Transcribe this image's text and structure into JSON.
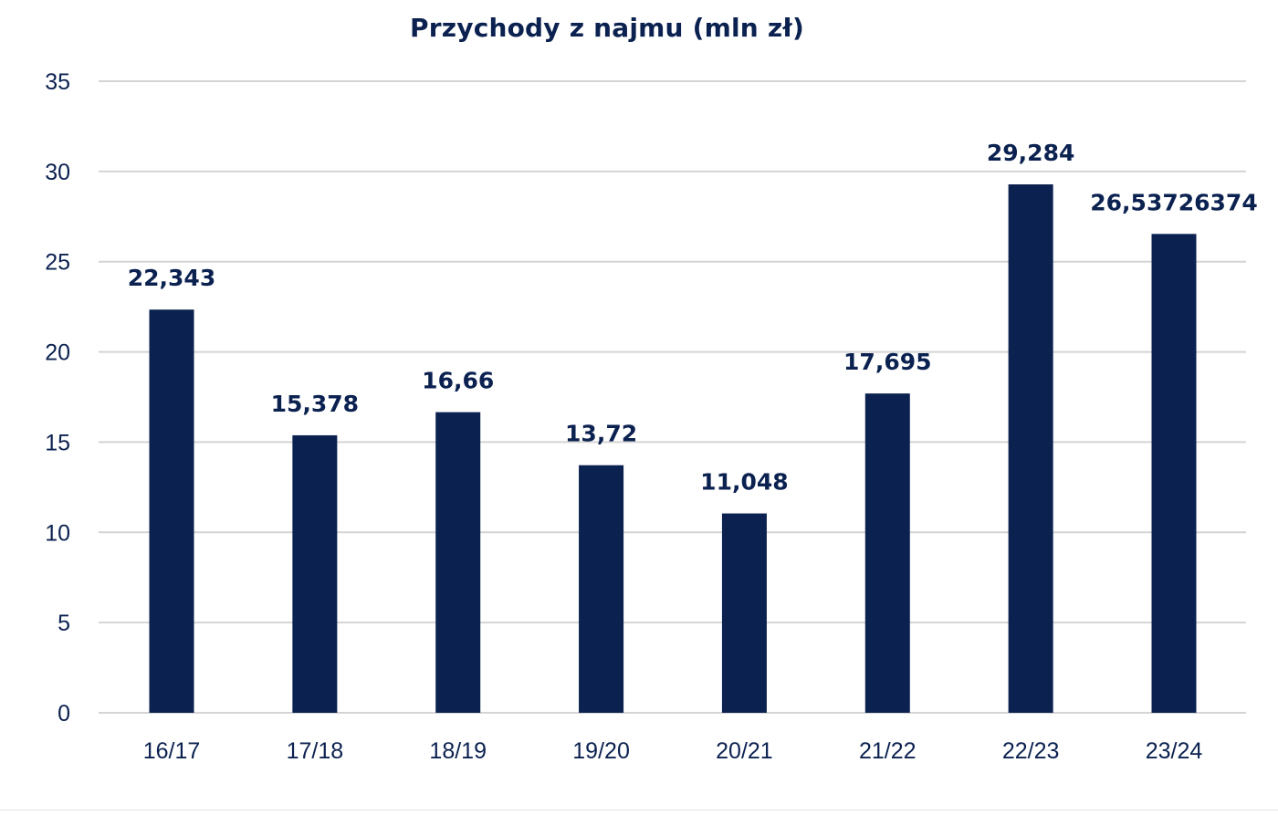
{
  "chart_data": {
    "type": "bar",
    "title": "Przychody z najmu (mln zł)",
    "xlabel": "",
    "ylabel": "",
    "categories": [
      "16/17",
      "17/18",
      "18/19",
      "19/20",
      "20/21",
      "21/22",
      "22/23",
      "23/24"
    ],
    "values": [
      22.343,
      15.378,
      16.66,
      13.72,
      11.048,
      17.695,
      29.284,
      26.53726374
    ],
    "data_labels": [
      "22,343",
      "15,378",
      "16,66",
      "13,72",
      "11,048",
      "17,695",
      "29,284",
      "26,53726374"
    ],
    "ylim": [
      0,
      35
    ],
    "yticks": [
      "0",
      "5",
      "10",
      "15",
      "20",
      "25",
      "30",
      "35"
    ],
    "grid": true,
    "legend": "none",
    "bar_color": "#0b2150"
  }
}
